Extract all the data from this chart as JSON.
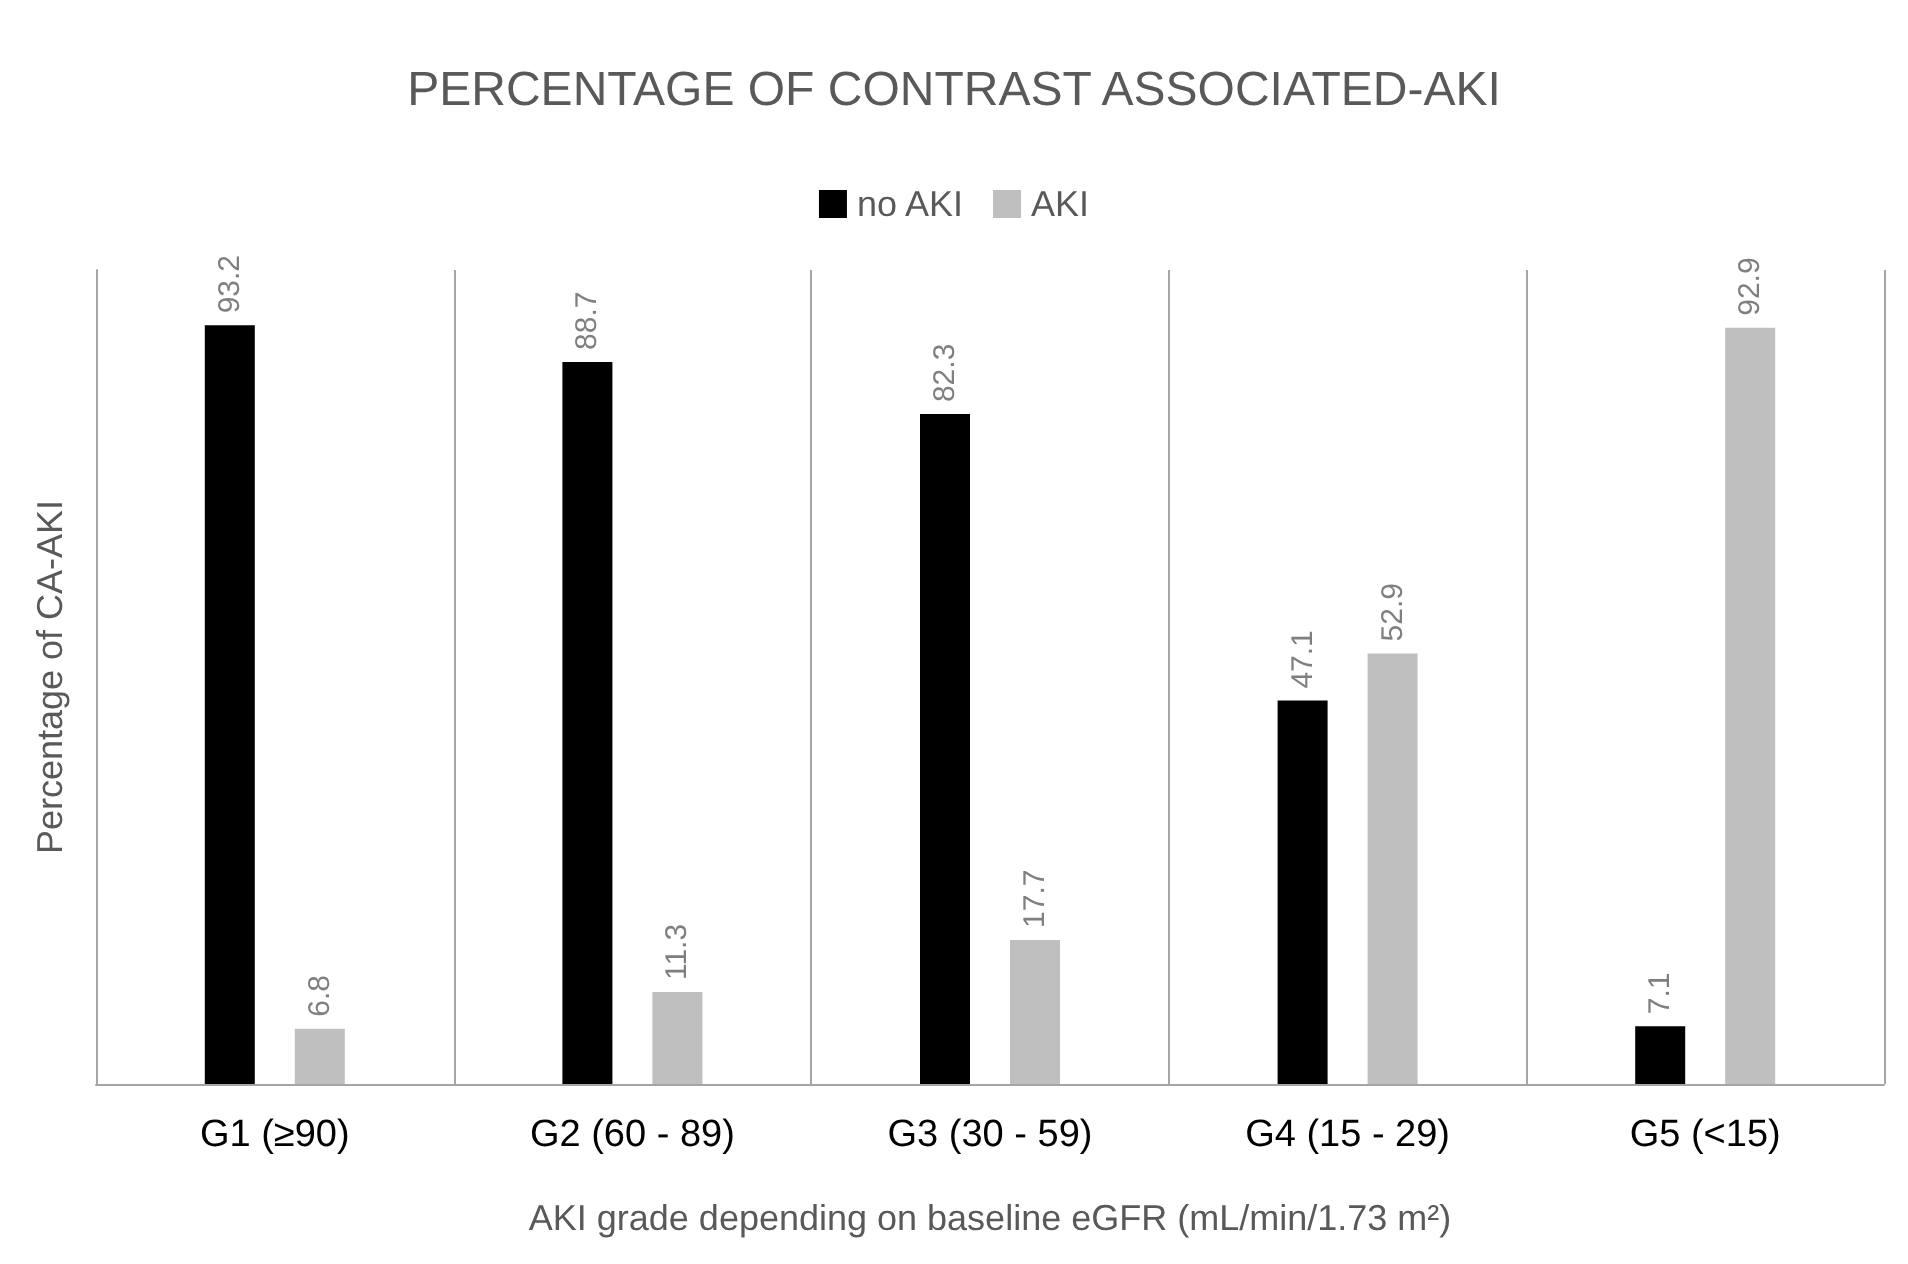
{
  "chart_data": {
    "type": "bar",
    "title": "PERCENTAGE OF CONTRAST ASSOCIATED-AKI",
    "xlabel": "AKI grade depending on baseline eGFR (mL/min/1.73 m²)",
    "ylabel": "Percentage of CA-AKI",
    "categories": [
      "G1 (≥90)",
      "G2 (60 - 89)",
      "G3 (30 - 59)",
      "G4 (15 - 29)",
      "G5 (<15)"
    ],
    "series": [
      {
        "name": "no AKI",
        "color": "#000000",
        "values": [
          93.2,
          88.7,
          82.3,
          47.1,
          7.1
        ]
      },
      {
        "name": "AKI",
        "color": "#bfbfbf",
        "values": [
          6.8,
          11.3,
          17.7,
          52.9,
          92.9
        ]
      }
    ],
    "ylim": [
      0,
      100
    ],
    "tick_labels": "x",
    "grid": "x",
    "legend": "top",
    "data_labels": true
  }
}
